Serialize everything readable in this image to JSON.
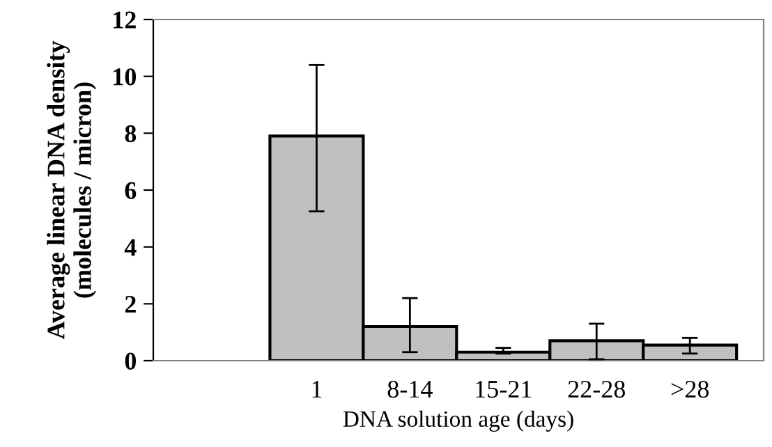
{
  "chart_data": {
    "type": "bar",
    "xlabel": "DNA solution age (days)",
    "ylabel": "Average linear DNA density\n(molecules / micron)",
    "categories": [
      "1",
      "8-14",
      "15-21",
      "22-28",
      ">28"
    ],
    "values": [
      7.9,
      1.2,
      0.3,
      0.7,
      0.55
    ],
    "errors": [
      [
        5.25,
        10.4
      ],
      [
        0.3,
        2.2
      ],
      [
        0.25,
        0.45
      ],
      [
        0.05,
        1.3
      ],
      [
        0.25,
        0.8
      ]
    ],
    "color": "#c0c0c0",
    "ylim": [
      0,
      12
    ],
    "yticks": [
      0,
      2,
      4,
      6,
      8,
      10,
      12
    ],
    "grid": false
  }
}
